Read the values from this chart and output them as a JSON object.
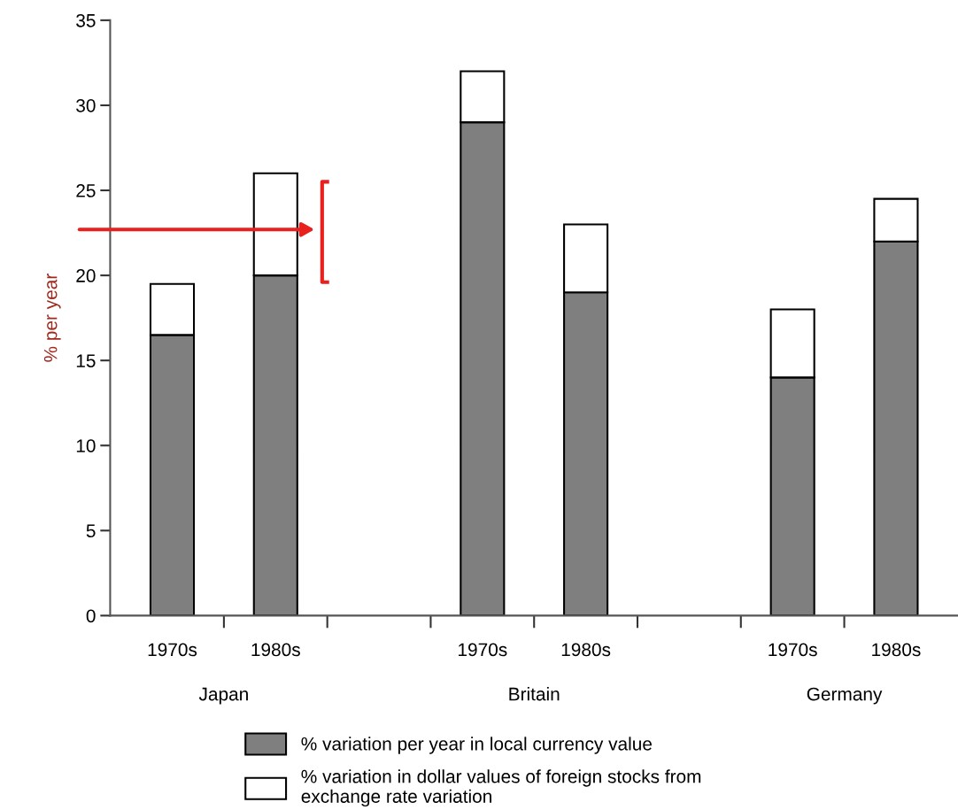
{
  "chart_data": {
    "type": "bar",
    "stacked": true,
    "categories": [
      "1970s",
      "1980s",
      null,
      "1970s",
      "1980s",
      null,
      "1970s",
      "1980s"
    ],
    "series": [
      {
        "name": "% variation per year in local currency value",
        "color": "#7f7f7f",
        "values": [
          16.5,
          20,
          null,
          29,
          19,
          null,
          14,
          22
        ]
      },
      {
        "name": "% variation in dollar values of foreign stocks from exchange rate variation",
        "color": "#ffffff",
        "values": [
          3,
          6,
          null,
          3,
          4,
          null,
          4,
          2.5
        ]
      }
    ],
    "ylabel": "% per year",
    "ylim": [
      0,
      35
    ],
    "yticks": [
      0,
      5,
      10,
      15,
      20,
      25,
      30,
      35
    ],
    "annotations": [
      "Japan",
      "Britain",
      "Germany"
    ],
    "grid": false,
    "legend": "bottom"
  }
}
